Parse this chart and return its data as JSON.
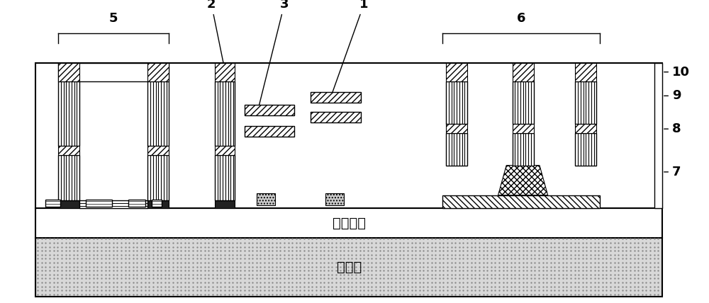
{
  "labels": {
    "sio2": "二氧化硅",
    "si_sub": "硅衷底"
  },
  "fig_width": 10.0,
  "fig_height": 4.28,
  "dpi": 100
}
